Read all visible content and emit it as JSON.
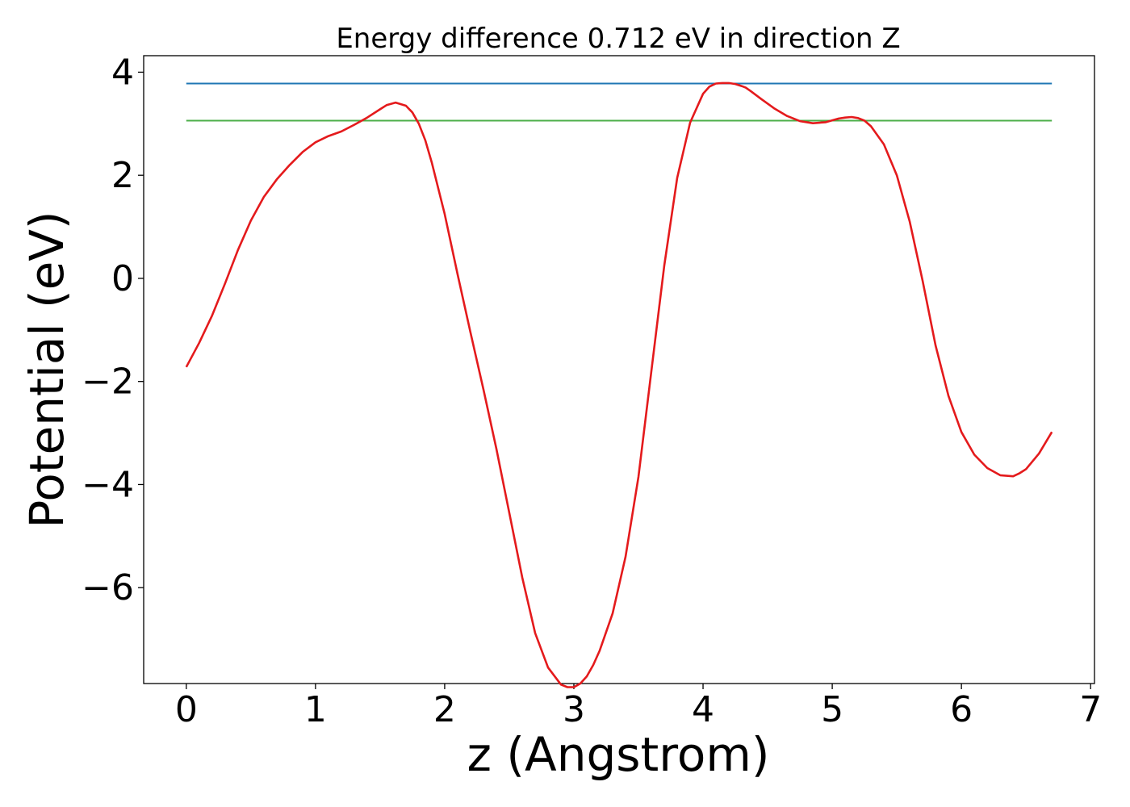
{
  "chart_data": {
    "type": "line",
    "title": "Energy difference 0.712 eV in direction Z",
    "xlabel": "z (Angstrom)",
    "ylabel": "Potential (eV)",
    "xlim": [
      -0.33,
      7.03
    ],
    "ylim": [
      -7.86,
      4.32
    ],
    "xticks": [
      0,
      1,
      2,
      3,
      4,
      5,
      6,
      7
    ],
    "xtick_labels": [
      "0",
      "1",
      "2",
      "3",
      "4",
      "5",
      "6",
      "7"
    ],
    "yticks": [
      4,
      2,
      0,
      -2,
      -4,
      -6
    ],
    "ytick_labels": [
      "4",
      "2",
      "0",
      "−2",
      "−4",
      "−6"
    ],
    "grid": false,
    "series": [
      {
        "color": "#e41a1c",
        "x": [
          0.0,
          0.1,
          0.2,
          0.3,
          0.4,
          0.5,
          0.6,
          0.7,
          0.8,
          0.9,
          1.0,
          1.1,
          1.2,
          1.3,
          1.4,
          1.5,
          1.55,
          1.62,
          1.7,
          1.75,
          1.8,
          1.85,
          1.9,
          2.0,
          2.1,
          2.2,
          2.3,
          2.4,
          2.5,
          2.6,
          2.7,
          2.8,
          2.9,
          2.95,
          3.0,
          3.05,
          3.1,
          3.15,
          3.2,
          3.3,
          3.4,
          3.5,
          3.6,
          3.7,
          3.8,
          3.9,
          4.0,
          4.05,
          4.1,
          4.15,
          4.2,
          4.25,
          4.3,
          4.33,
          4.37,
          4.45,
          4.55,
          4.65,
          4.75,
          4.85,
          4.95,
          5.05,
          5.1,
          5.15,
          5.2,
          5.25,
          5.3,
          5.4,
          5.5,
          5.6,
          5.7,
          5.8,
          5.9,
          6.0,
          6.1,
          6.2,
          6.3,
          6.4,
          6.45,
          6.5,
          6.6,
          6.7
        ],
        "y": [
          -1.72,
          -1.25,
          -0.72,
          -0.1,
          0.55,
          1.12,
          1.58,
          1.92,
          2.2,
          2.45,
          2.64,
          2.76,
          2.85,
          2.98,
          3.12,
          3.28,
          3.36,
          3.41,
          3.35,
          3.22,
          3.0,
          2.68,
          2.25,
          1.25,
          0.08,
          -1.05,
          -2.15,
          -3.3,
          -4.55,
          -5.8,
          -6.88,
          -7.55,
          -7.88,
          -7.93,
          -7.93,
          -7.86,
          -7.72,
          -7.5,
          -7.22,
          -6.5,
          -5.4,
          -3.85,
          -1.8,
          0.25,
          1.95,
          3.02,
          3.58,
          3.72,
          3.78,
          3.79,
          3.79,
          3.77,
          3.73,
          3.7,
          3.63,
          3.48,
          3.3,
          3.15,
          3.05,
          3.01,
          3.03,
          3.1,
          3.12,
          3.13,
          3.11,
          3.06,
          2.95,
          2.6,
          2.0,
          1.1,
          -0.05,
          -1.3,
          -2.28,
          -2.98,
          -3.42,
          -3.68,
          -3.82,
          -3.84,
          -3.78,
          -3.7,
          -3.4,
          -2.98
        ]
      },
      {
        "color": "#1f77b4",
        "x": [
          0.0,
          6.7
        ],
        "y": [
          3.78,
          3.78
        ]
      },
      {
        "color": "#4daf4a",
        "x": [
          0.0,
          6.7
        ],
        "y": [
          3.06,
          3.06
        ]
      }
    ]
  }
}
